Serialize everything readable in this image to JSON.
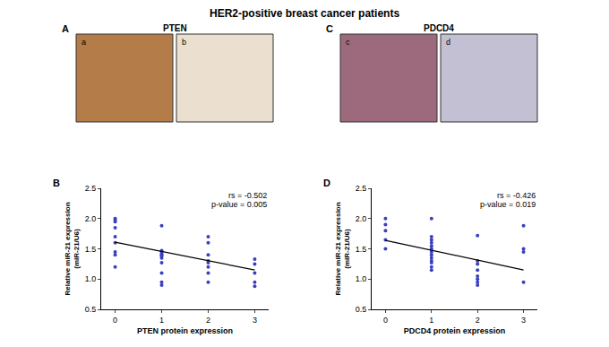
{
  "title": "HER2-positive breast cancer patients",
  "panels": [
    {
      "label": "A",
      "title": "PTEN",
      "images": [
        "a",
        "b"
      ]
    },
    {
      "label": "C",
      "title": "PDCD4",
      "images": [
        "c",
        "d"
      ]
    }
  ],
  "chart_data": [
    {
      "panel": "B",
      "type": "scatter",
      "xlabel": "PTEN protein expression",
      "ylabel": "Relative miR-21 expression\n(miR-21/U6)",
      "xlim": [
        -0.3,
        3.3
      ],
      "xticks": [
        0,
        1,
        2,
        3
      ],
      "ylim": [
        0.5,
        2.5
      ],
      "yticks": [
        0.5,
        {
          "value": 1,
          "label": "1.0"
        },
        1.5,
        {
          "value": 2,
          "label": "2.0"
        },
        2.5
      ],
      "annotations": [
        "rs = -0.502",
        "p-value = 0.005"
      ],
      "series": [
        {
          "type": "scatter",
          "marker": "circle",
          "color": "#3a3fbf",
          "x": [
            0,
            0,
            0,
            0,
            0,
            0,
            0,
            0,
            0,
            1,
            1,
            1,
            1,
            1,
            1,
            1,
            1,
            1,
            1,
            1,
            2,
            2,
            2,
            2,
            2,
            2,
            2,
            2,
            3,
            3,
            3,
            3,
            3
          ],
          "values": [
            2.0,
            1.98,
            1.95,
            1.85,
            1.7,
            1.6,
            1.45,
            1.4,
            1.2,
            1.88,
            1.47,
            1.45,
            1.42,
            1.4,
            1.38,
            1.35,
            1.27,
            1.1,
            0.95,
            0.9,
            1.7,
            1.6,
            1.4,
            1.3,
            1.27,
            1.2,
            1.1,
            0.95,
            1.33,
            1.25,
            1.1,
            0.95,
            0.88
          ]
        },
        {
          "type": "line",
          "line_style": "solid",
          "color": "#000000",
          "x": [
            0,
            3
          ],
          "values": [
            1.61,
            1.15
          ]
        }
      ]
    },
    {
      "panel": "D",
      "type": "scatter",
      "xlabel": "PDCD4 protein expression",
      "ylabel": "Relative miR-21 expression\n(miR-21/U6)",
      "xlim": [
        -0.3,
        3.3
      ],
      "xticks": [
        0,
        1,
        2,
        3
      ],
      "ylim": [
        0.5,
        2.5
      ],
      "yticks": [
        0.5,
        {
          "value": 1,
          "label": "1.0"
        },
        1.5,
        {
          "value": 2,
          "label": "2.0"
        },
        2.5
      ],
      "annotations": [
        "rs = -0.426",
        "p-value = 0.019"
      ],
      "series": [
        {
          "type": "scatter",
          "marker": "circle",
          "color": "#3a3fbf",
          "x": [
            0,
            0,
            0,
            0,
            0,
            1,
            1,
            1,
            1,
            1,
            1,
            1,
            1,
            1,
            1,
            1,
            1,
            1,
            2,
            2,
            2,
            2,
            2,
            2,
            2,
            2,
            3,
            3,
            3,
            3
          ],
          "values": [
            2.0,
            1.9,
            1.8,
            1.65,
            1.5,
            2.0,
            1.7,
            1.65,
            1.6,
            1.55,
            1.5,
            1.45,
            1.4,
            1.35,
            1.3,
            1.27,
            1.2,
            1.15,
            1.72,
            1.3,
            1.25,
            1.15,
            1.05,
            1.0,
            0.95,
            0.9,
            1.88,
            1.5,
            1.45,
            0.95
          ]
        },
        {
          "type": "line",
          "line_style": "solid",
          "color": "#000000",
          "x": [
            0,
            3
          ],
          "values": [
            1.64,
            1.15
          ]
        }
      ]
    }
  ]
}
